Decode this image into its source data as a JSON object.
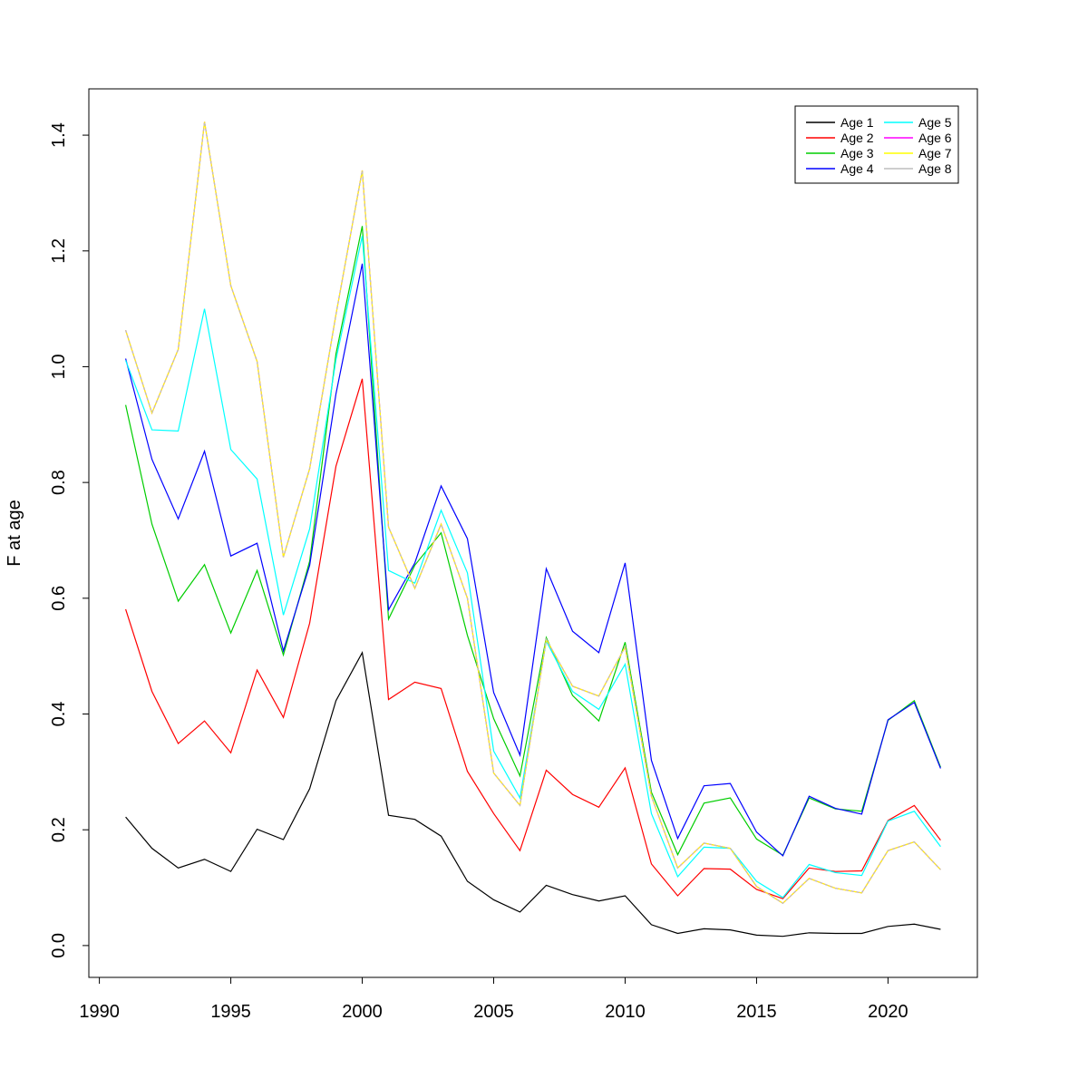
{
  "chart_data": {
    "type": "line",
    "title": "",
    "xlabel": "",
    "ylabel": "F at age",
    "xlim": [
      1989.6,
      2023.4
    ],
    "ylim": [
      -0.055,
      1.48
    ],
    "xticks": [
      1990,
      1995,
      2000,
      2005,
      2010,
      2015,
      2020
    ],
    "yticks": [
      0.0,
      0.2,
      0.4,
      0.6,
      0.8,
      1.0,
      1.2,
      1.4
    ],
    "ytick_labels": [
      "0.0",
      "0.2",
      "0.4",
      "0.6",
      "0.8",
      "1.0",
      "1.2",
      "1.4"
    ],
    "grid": false,
    "legend_position": "top-right",
    "x": [
      1991,
      1992,
      1993,
      1994,
      1995,
      1996,
      1997,
      1998,
      1999,
      2000,
      2001,
      2002,
      2003,
      2004,
      2005,
      2006,
      2007,
      2008,
      2009,
      2010,
      2011,
      2012,
      2013,
      2014,
      2015,
      2016,
      2017,
      2018,
      2019,
      2020,
      2021,
      2022
    ],
    "series": [
      {
        "name": "Age 1",
        "color": "#000000",
        "values": [
          0.222,
          0.168,
          0.134,
          0.149,
          0.128,
          0.201,
          0.183,
          0.271,
          0.423,
          0.506,
          0.225,
          0.218,
          0.189,
          0.111,
          0.079,
          0.058,
          0.104,
          0.088,
          0.077,
          0.086,
          0.036,
          0.021,
          0.029,
          0.027,
          0.018,
          0.016,
          0.022,
          0.021,
          0.021,
          0.033,
          0.037,
          0.028
        ]
      },
      {
        "name": "Age 2",
        "color": "#ff0000",
        "values": [
          0.581,
          0.439,
          0.349,
          0.388,
          0.333,
          0.476,
          0.394,
          0.557,
          0.828,
          0.979,
          0.425,
          0.455,
          0.444,
          0.301,
          0.228,
          0.164,
          0.303,
          0.261,
          0.239,
          0.307,
          0.141,
          0.086,
          0.133,
          0.132,
          0.097,
          0.081,
          0.134,
          0.128,
          0.129,
          0.216,
          0.242,
          0.182
        ]
      },
      {
        "name": "Age 3",
        "color": "#00cd00",
        "values": [
          0.934,
          0.728,
          0.595,
          0.658,
          0.54,
          0.648,
          0.502,
          0.664,
          1.022,
          1.243,
          0.564,
          0.657,
          0.713,
          0.536,
          0.392,
          0.293,
          0.532,
          0.432,
          0.388,
          0.524,
          0.265,
          0.157,
          0.246,
          0.255,
          0.184,
          0.156,
          0.255,
          0.236,
          0.232,
          0.389,
          0.423,
          0.308
        ]
      },
      {
        "name": "Age 4",
        "color": "#0000ff",
        "values": [
          1.014,
          0.84,
          0.737,
          0.854,
          0.673,
          0.695,
          0.509,
          0.657,
          0.953,
          1.178,
          0.58,
          0.661,
          0.794,
          0.703,
          0.437,
          0.329,
          0.651,
          0.543,
          0.506,
          0.661,
          0.32,
          0.185,
          0.276,
          0.28,
          0.196,
          0.155,
          0.258,
          0.237,
          0.227,
          0.39,
          0.42,
          0.306
        ]
      },
      {
        "name": "Age 5",
        "color": "#00ffff",
        "values": [
          1.011,
          0.891,
          0.889,
          1.1,
          0.857,
          0.806,
          0.571,
          0.72,
          1.012,
          1.226,
          0.648,
          0.626,
          0.752,
          0.644,
          0.336,
          0.255,
          0.526,
          0.439,
          0.408,
          0.486,
          0.228,
          0.119,
          0.17,
          0.168,
          0.111,
          0.083,
          0.14,
          0.126,
          0.121,
          0.215,
          0.232,
          0.171
        ]
      },
      {
        "name": "Age 6",
        "color": "#ff00ff",
        "values": [
          1.063,
          0.92,
          1.03,
          1.423,
          1.14,
          1.009,
          0.671,
          0.824,
          1.09,
          1.339,
          0.723,
          0.617,
          0.728,
          0.6,
          0.298,
          0.242,
          0.529,
          0.448,
          0.431,
          0.516,
          0.258,
          0.134,
          0.177,
          0.168,
          0.102,
          0.073,
          0.116,
          0.099,
          0.091,
          0.164,
          0.179,
          0.131
        ]
      },
      {
        "name": "Age 7",
        "color": "#ffff00",
        "values": [
          1.063,
          0.92,
          1.03,
          1.423,
          1.14,
          1.009,
          0.671,
          0.824,
          1.09,
          1.339,
          0.723,
          0.617,
          0.728,
          0.6,
          0.298,
          0.242,
          0.529,
          0.448,
          0.431,
          0.516,
          0.258,
          0.134,
          0.177,
          0.168,
          0.102,
          0.073,
          0.116,
          0.099,
          0.091,
          0.164,
          0.179,
          0.131
        ]
      },
      {
        "name": "Age 8",
        "color": "#bebebe",
        "values": [
          1.063,
          0.92,
          1.03,
          1.423,
          1.14,
          1.009,
          0.671,
          0.824,
          1.09,
          1.339,
          0.723,
          0.617,
          0.728,
          0.6,
          0.298,
          0.242,
          0.529,
          0.448,
          0.431,
          0.516,
          0.258,
          0.134,
          0.177,
          0.168,
          0.102,
          0.073,
          0.116,
          0.099,
          0.091,
          0.164,
          0.179,
          0.131
        ]
      }
    ]
  }
}
